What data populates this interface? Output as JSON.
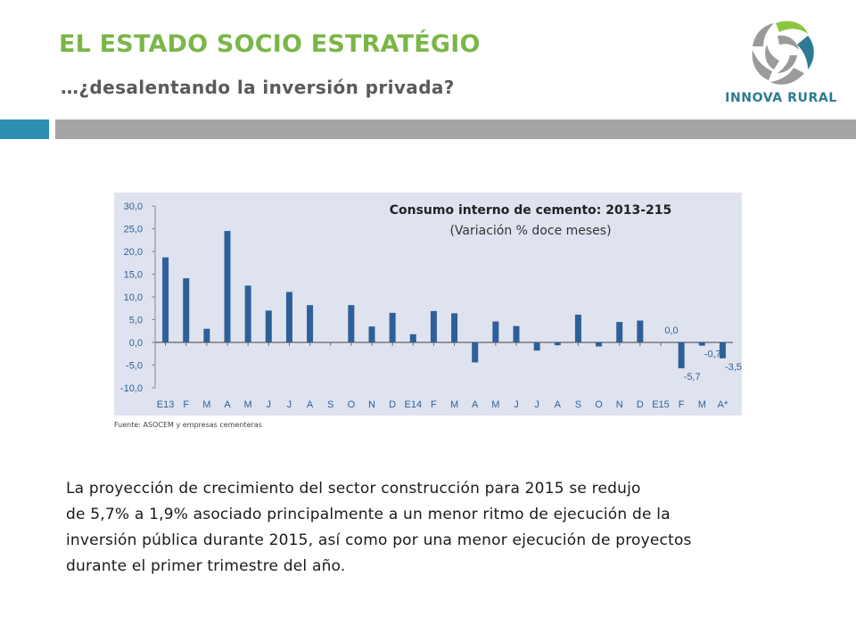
{
  "slide": {
    "title": "EL ESTADO SOCIO ESTRATÉGIO",
    "subtitle": "…¿desalentando la inversión privada?",
    "colors": {
      "title": "#7ab648",
      "accent_band": "#2e8fb3",
      "gray_band": "#a5a5a5",
      "bars": "#2f5f99"
    }
  },
  "logo": {
    "text": "INNOVA RURAL"
  },
  "chart_data": {
    "type": "bar",
    "title": "Consumo interno de cemento: 2013-215",
    "subtitle": "(Variación % doce meses)",
    "categories": [
      "E13",
      "F",
      "M",
      "A",
      "M",
      "J",
      "J",
      "A",
      "S",
      "O",
      "N",
      "D",
      "E14",
      "F",
      "M",
      "A",
      "M",
      "J",
      "J",
      "A",
      "S",
      "O",
      "N",
      "D",
      "E15",
      "F",
      "M",
      "A*"
    ],
    "values": [
      18.7,
      14.1,
      3.0,
      24.5,
      12.5,
      7.0,
      11.1,
      8.2,
      0.0,
      8.2,
      3.5,
      6.5,
      1.8,
      6.9,
      6.4,
      -4.4,
      4.6,
      3.6,
      -1.8,
      -0.6,
      6.1,
      -0.9,
      4.5,
      4.8,
      0.0,
      -5.7,
      -0.7,
      -3.5
    ],
    "data_labels": [
      {
        "index": 24,
        "text": "0,0"
      },
      {
        "index": 25,
        "text": "-5,7"
      },
      {
        "index": 26,
        "text": "-0,7"
      },
      {
        "index": 27,
        "text": "-3,5"
      }
    ],
    "yticks": [
      "30,0",
      "25,0",
      "20,0",
      "15,0",
      "10,0",
      "5,0",
      "0,0",
      "-5,0",
      "-10,0"
    ],
    "ylim": [
      -10,
      30
    ],
    "grid": false,
    "source": "Fuente: ASOCEM y empresas cementeras"
  },
  "paragraph": [
    "La proyección de crecimiento del sector construcción para 2015 se redujo",
    "de 5,7% a 1,9% asociado principalmente a un menor ritmo de ejecución de la",
    "inversión pública durante 2015, así como por una menor ejecución de proyectos",
    "durante el primer trimestre del año."
  ]
}
